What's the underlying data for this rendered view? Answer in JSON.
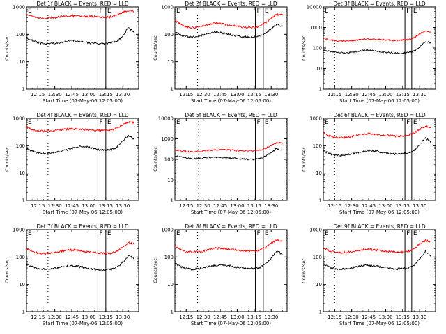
{
  "colors": {
    "events": "#000000",
    "lld": "#ff0000",
    "axes": "#000000"
  },
  "chart_data": [
    {
      "type": "line",
      "title": "Det 1f BLACK = Events, RED = LLD",
      "xlabel": "Start Time (07-May-06 12:05:00)",
      "ylabel": "Counts/sec",
      "ylog": true,
      "ylim": [
        1,
        1000
      ],
      "y_ticks": [
        "1",
        "10",
        "100",
        "1000"
      ],
      "x_ticks": [
        "12:15",
        "12:30",
        "12:45",
        "13:00",
        "13:15",
        "13:30"
      ],
      "xlim": [
        "12:05",
        "13:44"
      ],
      "x": [
        "12:05",
        "12:10",
        "12:15",
        "12:20",
        "12:25",
        "12:30",
        "12:35",
        "12:40",
        "12:45",
        "12:50",
        "12:55",
        "13:00",
        "13:05",
        "13:10",
        "13:15",
        "13:20",
        "13:25",
        "13:30",
        "13:35",
        "13:40"
      ],
      "series": [
        {
          "name": "Events",
          "color": "#000000",
          "values": [
            75,
            60,
            50,
            45,
            45,
            46,
            50,
            56,
            60,
            58,
            53,
            49,
            46,
            44,
            46,
            50,
            58,
            85,
            180,
            120
          ]
        },
        {
          "name": "LLD",
          "color": "#ff0000",
          "values": [
            560,
            460,
            400,
            390,
            400,
            410,
            440,
            470,
            480,
            470,
            460,
            450,
            440,
            430,
            420,
            440,
            520,
            640,
            720,
            700
          ]
        }
      ],
      "markers": {
        "dotted": [
          "12:24"
        ],
        "solid": [
          "13:08",
          "13:15"
        ],
        "letters": [
          [
            "E",
            "12:05"
          ],
          [
            "F",
            "13:08"
          ],
          [
            "E",
            "13:15"
          ]
        ]
      }
    },
    {
      "type": "line",
      "title": "Det 2f BLACK = Events, RED = LLD",
      "xlabel": "Start Time (07-May-06 12:05:00)",
      "ylabel": "Counts/sec",
      "ylog": true,
      "ylim": [
        1,
        1000
      ],
      "y_ticks": [
        "1",
        "10",
        "100",
        "1000"
      ],
      "x_ticks": [
        "12:15",
        "12:30",
        "12:45",
        "13:00",
        "13:15",
        "13:30"
      ],
      "xlim": [
        "12:05",
        "13:44"
      ],
      "x": [
        "12:05",
        "12:10",
        "12:15",
        "12:20",
        "12:25",
        "12:30",
        "12:35",
        "12:40",
        "12:45",
        "12:50",
        "12:55",
        "13:00",
        "13:05",
        "13:10",
        "13:15",
        "13:20",
        "13:25",
        "13:30",
        "13:35",
        "13:40"
      ],
      "series": [
        {
          "name": "Events",
          "color": "#000000",
          "values": [
            120,
            95,
            85,
            80,
            85,
            95,
            110,
            120,
            115,
            105,
            95,
            88,
            82,
            78,
            80,
            85,
            110,
            160,
            230,
            200
          ]
        },
        {
          "name": "LLD",
          "color": "#ff0000",
          "values": [
            330,
            230,
            190,
            175,
            180,
            200,
            230,
            260,
            250,
            230,
            210,
            195,
            185,
            175,
            180,
            200,
            260,
            400,
            520,
            520
          ]
        }
      ],
      "markers": {
        "dotted": [
          "12:25"
        ],
        "solid": [
          "13:16",
          "13:23"
        ],
        "letters": [
          [
            "E",
            "12:05"
          ],
          [
            "F",
            "13:16"
          ],
          [
            "E",
            "13:23"
          ]
        ]
      }
    },
    {
      "type": "line",
      "title": "Det 3f BLACK = Events, RED = LLD",
      "xlabel": "Start Time (07-May-06 12:05:00)",
      "ylabel": "Counts/sec",
      "ylog": true,
      "ylim": [
        1,
        10000
      ],
      "y_ticks": [
        "1",
        "10",
        "100",
        "1000",
        "10000"
      ],
      "x_ticks": [
        "12:15",
        "12:30",
        "12:45",
        "13:00",
        "13:15",
        "13:30"
      ],
      "xlim": [
        "12:05",
        "13:44"
      ],
      "x": [
        "12:05",
        "12:10",
        "12:15",
        "12:20",
        "12:25",
        "12:30",
        "12:35",
        "12:40",
        "12:45",
        "12:50",
        "12:55",
        "13:00",
        "13:05",
        "13:10",
        "13:15",
        "13:20",
        "13:25",
        "13:30",
        "13:35",
        "13:40"
      ],
      "series": [
        {
          "name": "Events",
          "color": "#000000",
          "values": [
            80,
            70,
            62,
            58,
            58,
            62,
            68,
            75,
            78,
            74,
            68,
            62,
            58,
            55,
            56,
            60,
            70,
            110,
            200,
            180
          ]
        },
        {
          "name": "LLD",
          "color": "#ff0000",
          "values": [
            300,
            260,
            230,
            220,
            220,
            230,
            250,
            270,
            280,
            270,
            260,
            250,
            240,
            235,
            240,
            260,
            320,
            480,
            650,
            580
          ]
        }
      ],
      "markers": {
        "dotted": [
          "12:15"
        ],
        "solid": [
          "13:17",
          "13:23"
        ],
        "letters": [
          [
            "E",
            "12:05"
          ],
          [
            "F",
            "13:17"
          ],
          [
            "E",
            "13:23"
          ]
        ]
      }
    },
    {
      "type": "line",
      "title": "Det 4f BLACK = Events, RED = LLD",
      "xlabel": "Start Time (07-May-06 12:05:00)",
      "ylabel": "Counts/sec",
      "ylog": true,
      "ylim": [
        1,
        1000
      ],
      "y_ticks": [
        "1",
        "10",
        "100",
        "1000"
      ],
      "x_ticks": [
        "12:15",
        "12:30",
        "12:45",
        "13:00",
        "13:15",
        "13:30"
      ],
      "xlim": [
        "12:05",
        "13:44"
      ],
      "x": [
        "12:05",
        "12:10",
        "12:15",
        "12:20",
        "12:25",
        "12:30",
        "12:35",
        "12:40",
        "12:45",
        "12:50",
        "12:55",
        "13:00",
        "13:05",
        "13:10",
        "13:15",
        "13:20",
        "13:25",
        "13:30",
        "13:35",
        "13:40"
      ],
      "series": [
        {
          "name": "Events",
          "color": "#000000",
          "values": [
            80,
            62,
            55,
            52,
            53,
            56,
            62,
            70,
            80,
            90,
            95,
            88,
            78,
            70,
            68,
            72,
            90,
            150,
            240,
            170
          ]
        },
        {
          "name": "LLD",
          "color": "#ff0000",
          "values": [
            480,
            380,
            350,
            340,
            350,
            360,
            380,
            400,
            410,
            400,
            390,
            380,
            370,
            360,
            360,
            380,
            450,
            600,
            720,
            700
          ]
        }
      ],
      "markers": {
        "dotted": [
          "12:24"
        ],
        "solid": [
          "13:08",
          "13:15"
        ],
        "letters": [
          [
            "E",
            "12:05"
          ],
          [
            "F",
            "13:08"
          ],
          [
            "E",
            "13:15"
          ]
        ]
      }
    },
    {
      "type": "line",
      "title": "Det 5f BLACK = Events, RED = LLD",
      "xlabel": "Start Time (07-May-06 12:05:00)",
      "ylabel": "Counts/sec",
      "ylog": true,
      "ylim": [
        1,
        10000
      ],
      "y_ticks": [
        "1",
        "10",
        "100",
        "1000",
        "10000"
      ],
      "x_ticks": [
        "12:15",
        "12:30",
        "12:45",
        "13:00",
        "13:15",
        "13:30"
      ],
      "xlim": [
        "12:05",
        "13:44"
      ],
      "x": [
        "12:05",
        "12:10",
        "12:15",
        "12:20",
        "12:25",
        "12:30",
        "12:35",
        "12:40",
        "12:45",
        "12:50",
        "12:55",
        "13:00",
        "13:05",
        "13:10",
        "13:15",
        "13:20",
        "13:25",
        "13:30",
        "13:35",
        "13:40"
      ],
      "series": [
        {
          "name": "Events",
          "color": "#000000",
          "values": [
            150,
            130,
            115,
            110,
            110,
            115,
            125,
            130,
            125,
            120,
            115,
            110,
            105,
            100,
            100,
            110,
            140,
            220,
            340,
            280
          ]
        },
        {
          "name": "LLD",
          "color": "#ff0000",
          "values": [
            300,
            260,
            240,
            235,
            240,
            250,
            270,
            290,
            300,
            290,
            280,
            270,
            260,
            255,
            260,
            280,
            340,
            480,
            650,
            600
          ]
        }
      ],
      "markers": {
        "dotted": [
          "12:26"
        ],
        "solid": [
          "13:16",
          "13:23"
        ],
        "letters": [
          [
            "E",
            "12:05"
          ],
          [
            "F",
            "13:16"
          ],
          [
            "E",
            "13:23"
          ]
        ]
      }
    },
    {
      "type": "line",
      "title": "Det 6f BLACK = Events, RED = LLD",
      "xlabel": "Start Time (07-May-06 12:05:00)",
      "ylabel": "Counts/sec",
      "ylog": true,
      "ylim": [
        1,
        1000
      ],
      "y_ticks": [
        "1",
        "10",
        "100",
        "1000"
      ],
      "x_ticks": [
        "12:15",
        "12:30",
        "12:45",
        "13:00",
        "13:15",
        "13:30"
      ],
      "xlim": [
        "12:05",
        "13:44"
      ],
      "x": [
        "12:05",
        "12:10",
        "12:15",
        "12:20",
        "12:25",
        "12:30",
        "12:35",
        "12:40",
        "12:45",
        "12:50",
        "12:55",
        "13:00",
        "13:05",
        "13:10",
        "13:15",
        "13:20",
        "13:25",
        "13:30",
        "13:35",
        "13:40"
      ],
      "series": [
        {
          "name": "Events",
          "color": "#000000",
          "values": [
            65,
            52,
            45,
            44,
            46,
            50,
            56,
            62,
            66,
            64,
            58,
            54,
            50,
            48,
            50,
            55,
            68,
            110,
            190,
            140
          ]
        },
        {
          "name": "LLD",
          "color": "#ff0000",
          "values": [
            300,
            230,
            200,
            195,
            200,
            215,
            240,
            260,
            270,
            260,
            250,
            240,
            230,
            220,
            220,
            240,
            290,
            400,
            520,
            460
          ]
        }
      ],
      "markers": {
        "dotted": [
          "12:15"
        ],
        "solid": [
          "13:17",
          "13:23"
        ],
        "letters": [
          [
            "E",
            "12:05"
          ],
          [
            "F",
            "13:17"
          ],
          [
            "E",
            "13:23"
          ]
        ]
      }
    },
    {
      "type": "line",
      "title": "Det 7f BLACK = Events, RED = LLD",
      "xlabel": "Start Time (07-May-06 12:05:00)",
      "ylabel": "Counts/sec",
      "ylog": true,
      "ylim": [
        1,
        1000
      ],
      "y_ticks": [
        "1",
        "10",
        "100",
        "1000"
      ],
      "x_ticks": [
        "12:15",
        "12:30",
        "12:45",
        "13:00",
        "13:15",
        "13:30"
      ],
      "xlim": [
        "12:05",
        "13:44"
      ],
      "x": [
        "12:05",
        "12:10",
        "12:15",
        "12:20",
        "12:25",
        "12:30",
        "12:35",
        "12:40",
        "12:45",
        "12:50",
        "12:55",
        "13:00",
        "13:05",
        "13:10",
        "13:15",
        "13:20",
        "13:25",
        "13:30",
        "13:35",
        "13:40"
      ],
      "series": [
        {
          "name": "Events",
          "color": "#000000",
          "values": [
            55,
            44,
            38,
            36,
            36,
            38,
            42,
            46,
            48,
            46,
            42,
            38,
            36,
            34,
            34,
            36,
            42,
            65,
            110,
            90
          ]
        },
        {
          "name": "LLD",
          "color": "#ff0000",
          "values": [
            200,
            160,
            140,
            135,
            138,
            145,
            160,
            175,
            180,
            172,
            160,
            150,
            142,
            136,
            135,
            140,
            160,
            230,
            330,
            300
          ]
        }
      ],
      "markers": {
        "dotted": [
          "12:24"
        ],
        "solid": [
          "13:08",
          "13:15"
        ],
        "letters": [
          [
            "E",
            "12:05"
          ],
          [
            "F",
            "13:08"
          ],
          [
            "E",
            "13:15"
          ]
        ]
      }
    },
    {
      "type": "line",
      "title": "Det 8f BLACK = Events, RED = LLD",
      "xlabel": "Start Time (07-May-06 12:05:00)",
      "ylabel": "Counts/sec",
      "ylog": true,
      "ylim": [
        1,
        1000
      ],
      "y_ticks": [
        "1",
        "10",
        "100",
        "1000"
      ],
      "x_ticks": [
        "12:15",
        "12:30",
        "12:45",
        "13:00",
        "13:15",
        "13:30"
      ],
      "xlim": [
        "12:05",
        "13:44"
      ],
      "x": [
        "12:05",
        "12:10",
        "12:15",
        "12:20",
        "12:25",
        "12:30",
        "12:35",
        "12:40",
        "12:45",
        "12:50",
        "12:55",
        "13:00",
        "13:05",
        "13:10",
        "13:15",
        "13:20",
        "13:25",
        "13:30",
        "13:35",
        "13:40"
      ],
      "series": [
        {
          "name": "Events",
          "color": "#000000",
          "values": [
            60,
            45,
            38,
            36,
            37,
            40,
            45,
            50,
            52,
            50,
            46,
            42,
            40,
            38,
            38,
            42,
            55,
            90,
            170,
            120
          ]
        },
        {
          "name": "LLD",
          "color": "#ff0000",
          "values": [
            260,
            190,
            160,
            150,
            155,
            165,
            185,
            205,
            210,
            200,
            190,
            180,
            170,
            165,
            165,
            180,
            220,
            320,
            430,
            380
          ]
        }
      ],
      "markers": {
        "dotted": [
          "12:25"
        ],
        "solid": [
          "13:16",
          "13:23"
        ],
        "letters": [
          [
            "E",
            "12:05"
          ],
          [
            "F",
            "13:16"
          ],
          [
            "E",
            "13:23"
          ]
        ]
      }
    },
    {
      "type": "line",
      "title": "Det 9f BLACK = Events, RED = LLD",
      "xlabel": "Start Time (07-May-06 12:05:00)",
      "ylabel": "Counts/sec",
      "ylog": true,
      "ylim": [
        1,
        1000
      ],
      "y_ticks": [
        "1",
        "10",
        "100",
        "1000"
      ],
      "x_ticks": [
        "12:15",
        "12:30",
        "12:45",
        "13:00",
        "13:15",
        "13:30"
      ],
      "xlim": [
        "12:05",
        "13:44"
      ],
      "x": [
        "12:05",
        "12:10",
        "12:15",
        "12:20",
        "12:25",
        "12:30",
        "12:35",
        "12:40",
        "12:45",
        "12:50",
        "12:55",
        "13:00",
        "13:05",
        "13:10",
        "13:15",
        "13:20",
        "13:25",
        "13:30",
        "13:35",
        "13:40"
      ],
      "series": [
        {
          "name": "Events",
          "color": "#000000",
          "values": [
            55,
            44,
            38,
            36,
            37,
            40,
            44,
            48,
            50,
            48,
            44,
            40,
            38,
            37,
            38,
            40,
            50,
            85,
            160,
            110
          ]
        },
        {
          "name": "LLD",
          "color": "#ff0000",
          "values": [
            220,
            170,
            150,
            145,
            148,
            155,
            170,
            185,
            190,
            182,
            172,
            162,
            155,
            150,
            150,
            160,
            200,
            300,
            400,
            360
          ]
        }
      ],
      "markers": {
        "dotted": [
          "12:15"
        ],
        "solid": [
          "13:17",
          "13:23"
        ],
        "letters": [
          [
            "E",
            "12:05"
          ],
          [
            "F",
            "13:17"
          ],
          [
            "E",
            "13:23"
          ]
        ]
      }
    }
  ]
}
